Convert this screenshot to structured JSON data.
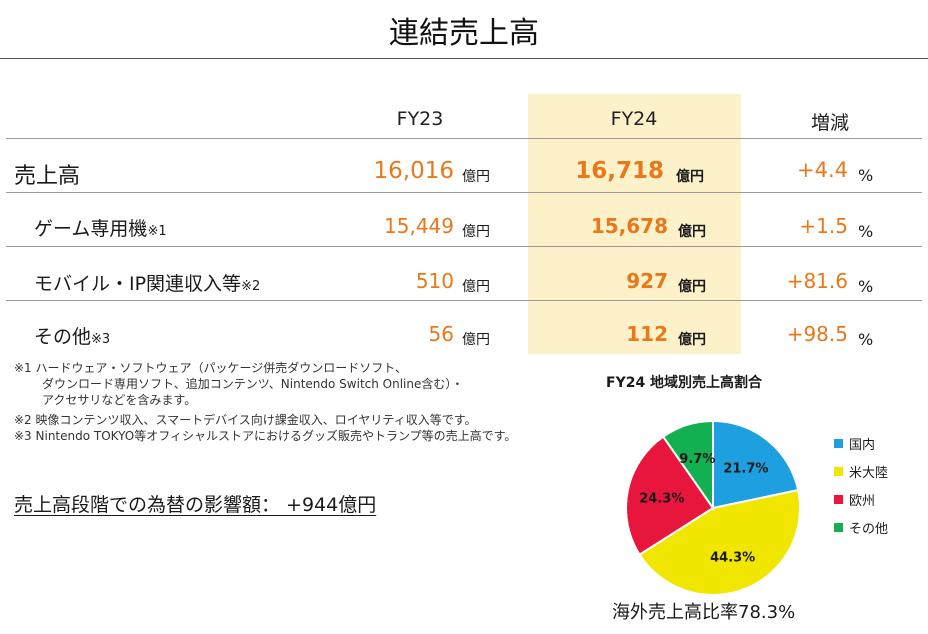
{
  "title": "連結売上高",
  "header": {
    "fy23": "FY23",
    "fy24": "FY24",
    "change": "増減"
  },
  "rows": [
    {
      "label": "売上高",
      "note": "",
      "fy23": "16,016",
      "fy23_unit": "億円",
      "fy24": "16,718",
      "fy24_unit": "億円",
      "change": "+4.4",
      "change_unit": "%"
    },
    {
      "label": "ゲーム専用機",
      "note": "※1",
      "fy23": "15,449",
      "fy23_unit": "億円",
      "fy24": "15,678",
      "fy24_unit": "億円",
      "change": "+1.5",
      "change_unit": "%"
    },
    {
      "label": "モバイル・IP関連収入等",
      "note": "※2",
      "fy23": "510",
      "fy23_unit": "億円",
      "fy24": "927",
      "fy24_unit": "億円",
      "change": "+81.6",
      "change_unit": "%"
    },
    {
      "label": "その他",
      "note": "※3",
      "fy23": "56",
      "fy23_unit": "億円",
      "fy24": "112",
      "fy24_unit": "億円",
      "change": "+98.5",
      "change_unit": "%"
    }
  ],
  "footnotes": [
    "※1 ハードウェア・ソフトウェア（パッケージ併売ダウンロードソフト、",
    "ダウンロード専用ソフト、追加コンテンツ、Nintendo Switch Online含む）・",
    "アクセサリなどを含みます。",
    "※2 映像コンテンツ収入、スマートデバイス向け課金収入、ロイヤリティ収入等です。",
    "※3 Nintendo TOKYO等オフィシャルストアにおけるグッズ販売やトランプ等の売上高です。"
  ],
  "fx_impact": "売上高段階での為替の影響額： +944億円",
  "overseas_ratio": "海外売上高比率78.3%",
  "colors": {
    "accent_orange": "#e8781a",
    "fy24_highlight": "#fdf1c9"
  },
  "chart_data": {
    "type": "pie",
    "title": "FY24 地域別売上高割合",
    "categories": [
      "国内",
      "米大陸",
      "欧州",
      "その他"
    ],
    "values": [
      21.7,
      44.3,
      24.3,
      9.7
    ],
    "labels": [
      "21.7%",
      "44.3%",
      "24.3%",
      "9.7%"
    ],
    "colors": [
      "#1e9fe0",
      "#f0e600",
      "#e8163c",
      "#12b050"
    ],
    "legend": "right"
  }
}
